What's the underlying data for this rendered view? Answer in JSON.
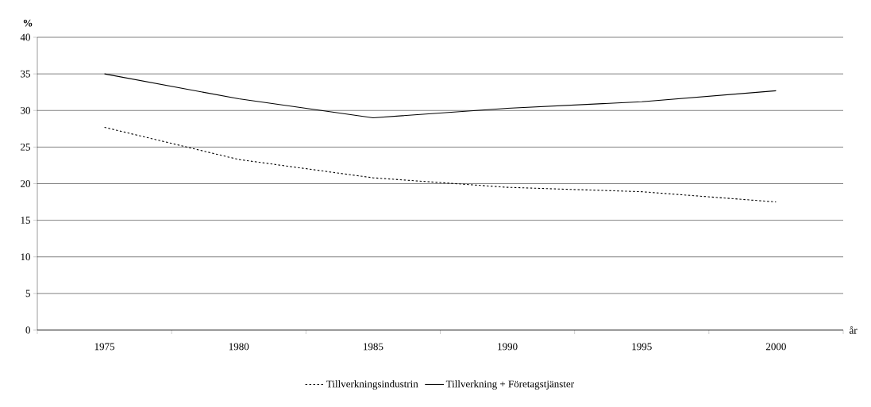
{
  "chart_data": {
    "type": "line",
    "ylabel": "%",
    "xlabel": "år",
    "categories": [
      "1975",
      "1980",
      "1985",
      "1990",
      "1995",
      "2000"
    ],
    "series": [
      {
        "name": "Tillverkningsindustrin",
        "color": "#000000",
        "line_style": "dotted",
        "values": [
          27.7,
          23.3,
          20.8,
          19.5,
          18.9,
          17.5
        ]
      },
      {
        "name": "Tillverkning + Företagstjänster",
        "color": "#000000",
        "line_style": "solid",
        "values": [
          35,
          31.6,
          29.0,
          30.3,
          31.2,
          32.7
        ]
      }
    ],
    "ylim": [
      0,
      40
    ],
    "yticks": [
      0,
      5,
      10,
      15,
      20,
      25,
      30,
      35,
      40
    ],
    "grid": "y",
    "legend": "bottom",
    "marker": "none"
  }
}
